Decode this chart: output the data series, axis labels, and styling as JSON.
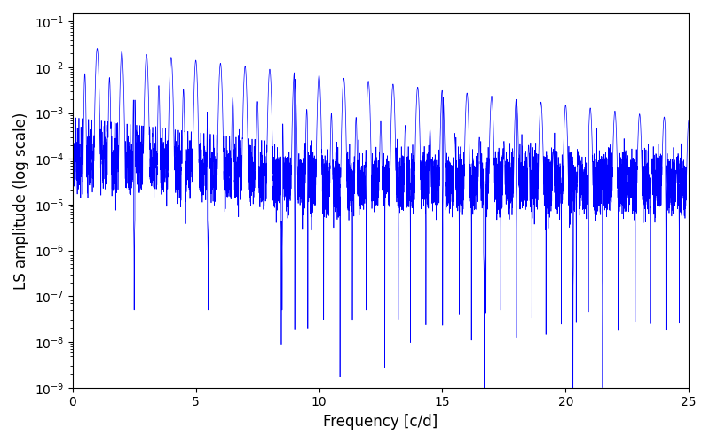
{
  "xlabel": "Frequency [c/d]",
  "ylabel": "LS amplitude (log scale)",
  "xlim": [
    0,
    25
  ],
  "ylim": [
    1e-09,
    0.15
  ],
  "line_color": "#0000ff",
  "line_width": 0.5,
  "background_color": "#ffffff",
  "figsize": [
    8.0,
    5.0
  ],
  "dpi": 100,
  "seed": 7,
  "n_points": 12000,
  "freq_max": 25.0,
  "xticks": [
    0,
    5,
    10,
    15,
    20,
    25
  ]
}
